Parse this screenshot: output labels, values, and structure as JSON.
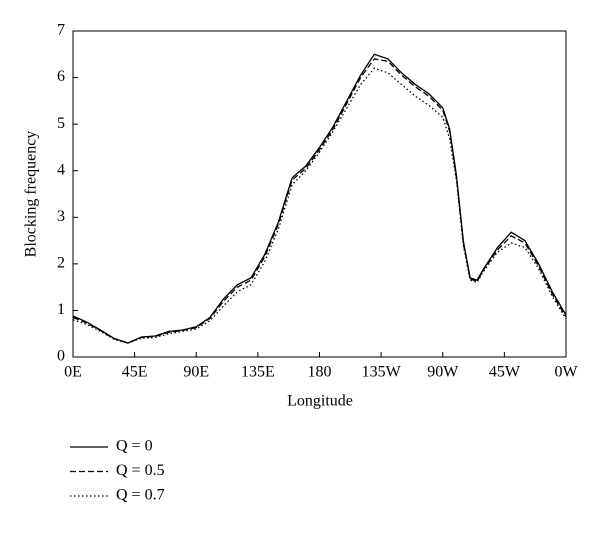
{
  "chart_data": {
    "type": "line",
    "xlabel": "Longitude",
    "ylabel": "Blocking frequency",
    "x": [
      0,
      10,
      20,
      30,
      40,
      50,
      60,
      70,
      80,
      90,
      100,
      110,
      120,
      130,
      140,
      150,
      160,
      170,
      180,
      190,
      200,
      210,
      220,
      230,
      240,
      250,
      260,
      270,
      275,
      280,
      285,
      290,
      295,
      300,
      310,
      320,
      330,
      340,
      350,
      360
    ],
    "series": [
      {
        "name": "Q = 0",
        "color": "#000000",
        "style": "solid",
        "values": [
          0.88,
          0.75,
          0.58,
          0.4,
          0.3,
          0.43,
          0.45,
          0.55,
          0.58,
          0.65,
          0.85,
          1.25,
          1.55,
          1.7,
          2.2,
          2.9,
          3.85,
          4.1,
          4.5,
          4.95,
          5.5,
          6.05,
          6.5,
          6.4,
          6.1,
          5.85,
          5.65,
          5.35,
          4.9,
          3.9,
          2.5,
          1.7,
          1.65,
          1.9,
          2.35,
          2.68,
          2.5,
          2.0,
          1.4,
          0.9
        ]
      },
      {
        "name": "Q = 0.5",
        "color": "#000000",
        "style": "dashed",
        "values": [
          0.85,
          0.73,
          0.57,
          0.39,
          0.3,
          0.42,
          0.44,
          0.53,
          0.57,
          0.63,
          0.83,
          1.2,
          1.5,
          1.65,
          2.15,
          2.85,
          3.8,
          4.05,
          4.45,
          4.9,
          5.45,
          6.0,
          6.4,
          6.35,
          6.05,
          5.8,
          5.6,
          5.3,
          4.85,
          3.85,
          2.45,
          1.68,
          1.62,
          1.88,
          2.3,
          2.6,
          2.45,
          1.95,
          1.35,
          0.86
        ]
      },
      {
        "name": "Q = 0.7",
        "color": "#000000",
        "style": "dotted",
        "values": [
          0.8,
          0.7,
          0.55,
          0.38,
          0.3,
          0.4,
          0.42,
          0.5,
          0.55,
          0.6,
          0.78,
          1.1,
          1.4,
          1.55,
          2.05,
          2.75,
          3.7,
          4.0,
          4.4,
          4.85,
          5.35,
          5.85,
          6.2,
          6.1,
          5.85,
          5.6,
          5.4,
          5.15,
          4.7,
          3.8,
          2.4,
          1.65,
          1.6,
          1.85,
          2.25,
          2.45,
          2.35,
          1.9,
          1.3,
          0.82
        ]
      }
    ],
    "xlim": [
      0,
      360
    ],
    "xticks": [
      {
        "value": 0,
        "label": "0E"
      },
      {
        "value": 45,
        "label": "45E"
      },
      {
        "value": 90,
        "label": "90E"
      },
      {
        "value": 135,
        "label": "135E"
      },
      180,
      {
        "value": 225,
        "label": "135W"
      },
      {
        "value": 270,
        "label": "90W"
      },
      {
        "value": 315,
        "label": "45W"
      },
      {
        "value": 360,
        "label": "0W"
      }
    ],
    "ylim": [
      0,
      7
    ],
    "yticks": [
      0,
      1,
      2,
      3,
      4,
      5,
      6,
      7
    ]
  }
}
